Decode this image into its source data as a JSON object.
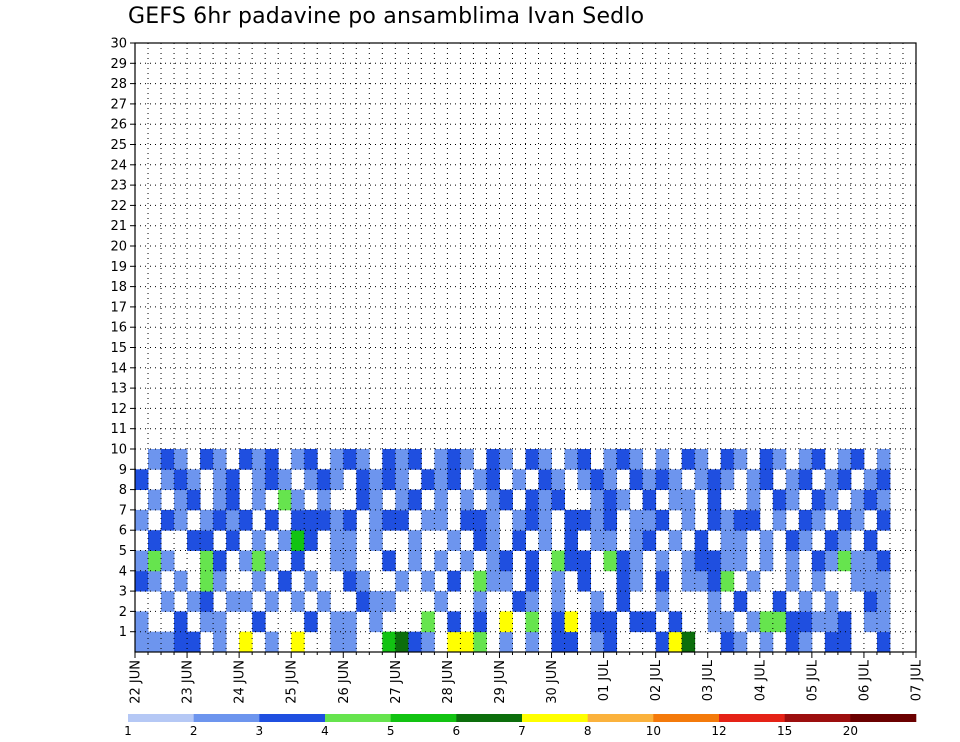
{
  "chart_data": {
    "type": "heatmap",
    "title": "GEFS 6hr padavine po ansamblima Ivan Sedlo",
    "x_ticks": [
      "22 JUN",
      "23 JUN",
      "24 JUN",
      "25 JUN",
      "26 JUN",
      "27 JUN",
      "28 JUN",
      "29 JUN",
      "30 JUN",
      "01 JUL",
      "02 JUL",
      "03 JUL",
      "04 JUL",
      "05 JUL",
      "06 JUL",
      "07 JUL"
    ],
    "y_ticks": [
      "1",
      "2",
      "3",
      "4",
      "5",
      "6",
      "7",
      "8",
      "9",
      "10",
      "11",
      "12",
      "13",
      "14",
      "15",
      "16",
      "17",
      "18",
      "19",
      "20",
      "21",
      "22",
      "23",
      "24",
      "25",
      "26",
      "27",
      "28",
      "29",
      "30"
    ],
    "xlim_days": [
      0,
      15
    ],
    "ylim": [
      0,
      30
    ],
    "steps_per_day": 4,
    "grid": true,
    "colorbar": {
      "levels": [
        "1",
        "2",
        "3",
        "4",
        "5",
        "6",
        "7",
        "8",
        "10",
        "12",
        "15",
        "20"
      ],
      "colors": [
        "#b5c8f5",
        "#6d95ee",
        "#1f4fe0",
        "#66e44e",
        "#12c312",
        "#0c6e0c",
        "#ffff00",
        "#fbb23c",
        "#f47a0b",
        "#e52216",
        "#9c0e0e",
        "#6b0000"
      ]
    },
    "cells": [
      [
        0,
        0,
        1
      ],
      [
        1,
        0,
        1
      ],
      [
        2,
        0,
        1
      ],
      [
        3,
        0,
        2
      ],
      [
        4,
        0,
        2
      ],
      [
        6,
        0,
        1
      ],
      [
        8,
        0,
        6
      ],
      [
        10,
        0,
        1
      ],
      [
        12,
        0,
        6
      ],
      [
        15,
        0,
        1
      ],
      [
        16,
        0,
        1
      ],
      [
        19,
        0,
        4
      ],
      [
        20,
        0,
        5
      ],
      [
        21,
        0,
        2
      ],
      [
        22,
        0,
        1
      ],
      [
        24,
        0,
        6
      ],
      [
        25,
        0,
        6
      ],
      [
        26,
        0,
        3
      ],
      [
        28,
        0,
        1
      ],
      [
        30,
        0,
        1
      ],
      [
        32,
        0,
        2
      ],
      [
        33,
        0,
        2
      ],
      [
        35,
        0,
        1
      ],
      [
        36,
        0,
        2
      ],
      [
        40,
        0,
        2
      ],
      [
        41,
        0,
        6
      ],
      [
        42,
        0,
        5
      ],
      [
        45,
        0,
        2
      ],
      [
        46,
        0,
        1
      ],
      [
        48,
        0,
        1
      ],
      [
        50,
        0,
        2
      ],
      [
        51,
        0,
        1
      ],
      [
        53,
        0,
        2
      ],
      [
        54,
        0,
        2
      ],
      [
        57,
        0,
        2
      ],
      [
        0,
        1,
        1
      ],
      [
        3,
        1,
        2
      ],
      [
        5,
        1,
        1
      ],
      [
        6,
        1,
        1
      ],
      [
        9,
        1,
        2
      ],
      [
        13,
        1,
        2
      ],
      [
        15,
        1,
        1
      ],
      [
        16,
        1,
        1
      ],
      [
        18,
        1,
        1
      ],
      [
        22,
        1,
        3
      ],
      [
        24,
        1,
        2
      ],
      [
        26,
        1,
        2
      ],
      [
        28,
        1,
        6
      ],
      [
        30,
        1,
        3
      ],
      [
        32,
        1,
        2
      ],
      [
        33,
        1,
        6
      ],
      [
        35,
        1,
        2
      ],
      [
        36,
        1,
        2
      ],
      [
        38,
        1,
        2
      ],
      [
        39,
        1,
        2
      ],
      [
        41,
        1,
        2
      ],
      [
        44,
        1,
        1
      ],
      [
        45,
        1,
        1
      ],
      [
        47,
        1,
        1
      ],
      [
        48,
        1,
        3
      ],
      [
        49,
        1,
        3
      ],
      [
        50,
        1,
        2
      ],
      [
        51,
        1,
        2
      ],
      [
        52,
        1,
        1
      ],
      [
        53,
        1,
        1
      ],
      [
        54,
        1,
        2
      ],
      [
        56,
        1,
        1
      ],
      [
        57,
        1,
        1
      ],
      [
        2,
        2,
        1
      ],
      [
        4,
        2,
        1
      ],
      [
        5,
        2,
        2
      ],
      [
        7,
        2,
        1
      ],
      [
        8,
        2,
        1
      ],
      [
        10,
        2,
        1
      ],
      [
        12,
        2,
        1
      ],
      [
        14,
        2,
        1
      ],
      [
        17,
        2,
        2
      ],
      [
        18,
        2,
        1
      ],
      [
        19,
        2,
        1
      ],
      [
        23,
        2,
        1
      ],
      [
        26,
        2,
        1
      ],
      [
        29,
        2,
        2
      ],
      [
        30,
        2,
        1
      ],
      [
        32,
        2,
        1
      ],
      [
        35,
        2,
        1
      ],
      [
        37,
        2,
        2
      ],
      [
        40,
        2,
        1
      ],
      [
        44,
        2,
        1
      ],
      [
        46,
        2,
        2
      ],
      [
        49,
        2,
        2
      ],
      [
        51,
        2,
        1
      ],
      [
        53,
        2,
        1
      ],
      [
        56,
        2,
        2
      ],
      [
        57,
        2,
        1
      ],
      [
        0,
        3,
        2
      ],
      [
        1,
        3,
        1
      ],
      [
        3,
        3,
        1
      ],
      [
        5,
        3,
        3
      ],
      [
        6,
        3,
        1
      ],
      [
        9,
        3,
        1
      ],
      [
        11,
        3,
        2
      ],
      [
        13,
        3,
        1
      ],
      [
        16,
        3,
        2
      ],
      [
        17,
        3,
        1
      ],
      [
        20,
        3,
        1
      ],
      [
        22,
        3,
        1
      ],
      [
        24,
        3,
        2
      ],
      [
        26,
        3,
        3
      ],
      [
        27,
        3,
        1
      ],
      [
        28,
        3,
        1
      ],
      [
        30,
        3,
        2
      ],
      [
        32,
        3,
        1
      ],
      [
        34,
        3,
        2
      ],
      [
        37,
        3,
        2
      ],
      [
        38,
        3,
        1
      ],
      [
        40,
        3,
        2
      ],
      [
        42,
        3,
        1
      ],
      [
        43,
        3,
        1
      ],
      [
        44,
        3,
        2
      ],
      [
        45,
        3,
        3
      ],
      [
        47,
        3,
        1
      ],
      [
        50,
        3,
        1
      ],
      [
        52,
        3,
        1
      ],
      [
        55,
        3,
        1
      ],
      [
        56,
        3,
        1
      ],
      [
        57,
        3,
        1
      ],
      [
        0,
        4,
        1
      ],
      [
        1,
        4,
        3
      ],
      [
        2,
        4,
        1
      ],
      [
        5,
        4,
        3
      ],
      [
        6,
        4,
        2
      ],
      [
        8,
        4,
        1
      ],
      [
        9,
        4,
        3
      ],
      [
        10,
        4,
        1
      ],
      [
        12,
        4,
        2
      ],
      [
        15,
        4,
        1
      ],
      [
        16,
        4,
        1
      ],
      [
        19,
        4,
        2
      ],
      [
        21,
        4,
        1
      ],
      [
        23,
        4,
        1
      ],
      [
        25,
        4,
        1
      ],
      [
        27,
        4,
        1
      ],
      [
        28,
        4,
        2
      ],
      [
        30,
        4,
        2
      ],
      [
        32,
        4,
        3
      ],
      [
        33,
        4,
        2
      ],
      [
        34,
        4,
        2
      ],
      [
        36,
        4,
        3
      ],
      [
        37,
        4,
        2
      ],
      [
        38,
        4,
        1
      ],
      [
        40,
        4,
        1
      ],
      [
        42,
        4,
        1
      ],
      [
        43,
        4,
        2
      ],
      [
        44,
        4,
        2
      ],
      [
        45,
        4,
        1
      ],
      [
        46,
        4,
        1
      ],
      [
        48,
        4,
        1
      ],
      [
        50,
        4,
        1
      ],
      [
        52,
        4,
        2
      ],
      [
        53,
        4,
        1
      ],
      [
        54,
        4,
        3
      ],
      [
        55,
        4,
        1
      ],
      [
        56,
        4,
        1
      ],
      [
        57,
        4,
        2
      ],
      [
        1,
        5,
        2
      ],
      [
        4,
        5,
        2
      ],
      [
        5,
        5,
        2
      ],
      [
        7,
        5,
        2
      ],
      [
        9,
        5,
        1
      ],
      [
        11,
        5,
        1
      ],
      [
        12,
        5,
        4
      ],
      [
        13,
        5,
        2
      ],
      [
        15,
        5,
        1
      ],
      [
        16,
        5,
        1
      ],
      [
        18,
        5,
        1
      ],
      [
        21,
        5,
        1
      ],
      [
        24,
        5,
        1
      ],
      [
        26,
        5,
        2
      ],
      [
        27,
        5,
        1
      ],
      [
        29,
        5,
        2
      ],
      [
        31,
        5,
        1
      ],
      [
        33,
        5,
        2
      ],
      [
        35,
        5,
        1
      ],
      [
        36,
        5,
        1
      ],
      [
        38,
        5,
        1
      ],
      [
        39,
        5,
        2
      ],
      [
        41,
        5,
        1
      ],
      [
        43,
        5,
        2
      ],
      [
        45,
        5,
        1
      ],
      [
        46,
        5,
        1
      ],
      [
        48,
        5,
        1
      ],
      [
        50,
        5,
        2
      ],
      [
        51,
        5,
        1
      ],
      [
        53,
        5,
        2
      ],
      [
        54,
        5,
        1
      ],
      [
        56,
        5,
        2
      ],
      [
        0,
        6,
        1
      ],
      [
        2,
        6,
        2
      ],
      [
        3,
        6,
        1
      ],
      [
        5,
        6,
        1
      ],
      [
        6,
        6,
        2
      ],
      [
        7,
        6,
        1
      ],
      [
        8,
        6,
        2
      ],
      [
        10,
        6,
        2
      ],
      [
        12,
        6,
        2
      ],
      [
        13,
        6,
        2
      ],
      [
        14,
        6,
        2
      ],
      [
        15,
        6,
        1
      ],
      [
        16,
        6,
        2
      ],
      [
        18,
        6,
        1
      ],
      [
        19,
        6,
        2
      ],
      [
        20,
        6,
        2
      ],
      [
        22,
        6,
        1
      ],
      [
        23,
        6,
        1
      ],
      [
        25,
        6,
        2
      ],
      [
        26,
        6,
        2
      ],
      [
        27,
        6,
        1
      ],
      [
        29,
        6,
        1
      ],
      [
        30,
        6,
        2
      ],
      [
        31,
        6,
        1
      ],
      [
        33,
        6,
        2
      ],
      [
        34,
        6,
        2
      ],
      [
        35,
        6,
        1
      ],
      [
        36,
        6,
        2
      ],
      [
        38,
        6,
        1
      ],
      [
        39,
        6,
        1
      ],
      [
        40,
        6,
        2
      ],
      [
        42,
        6,
        1
      ],
      [
        44,
        6,
        2
      ],
      [
        45,
        6,
        1
      ],
      [
        46,
        6,
        2
      ],
      [
        47,
        6,
        2
      ],
      [
        49,
        6,
        1
      ],
      [
        51,
        6,
        2
      ],
      [
        52,
        6,
        1
      ],
      [
        54,
        6,
        2
      ],
      [
        55,
        6,
        1
      ],
      [
        57,
        6,
        2
      ],
      [
        1,
        7,
        1
      ],
      [
        3,
        7,
        1
      ],
      [
        4,
        7,
        2
      ],
      [
        6,
        7,
        1
      ],
      [
        7,
        7,
        2
      ],
      [
        9,
        7,
        1
      ],
      [
        11,
        7,
        3
      ],
      [
        12,
        7,
        1
      ],
      [
        14,
        7,
        1
      ],
      [
        17,
        7,
        2
      ],
      [
        18,
        7,
        1
      ],
      [
        20,
        7,
        1
      ],
      [
        21,
        7,
        2
      ],
      [
        23,
        7,
        1
      ],
      [
        25,
        7,
        1
      ],
      [
        27,
        7,
        1
      ],
      [
        28,
        7,
        2
      ],
      [
        30,
        7,
        2
      ],
      [
        31,
        7,
        1
      ],
      [
        32,
        7,
        2
      ],
      [
        35,
        7,
        1
      ],
      [
        36,
        7,
        2
      ],
      [
        37,
        7,
        1
      ],
      [
        39,
        7,
        2
      ],
      [
        41,
        7,
        1
      ],
      [
        42,
        7,
        1
      ],
      [
        44,
        7,
        2
      ],
      [
        47,
        7,
        1
      ],
      [
        49,
        7,
        2
      ],
      [
        50,
        7,
        1
      ],
      [
        52,
        7,
        2
      ],
      [
        53,
        7,
        1
      ],
      [
        55,
        7,
        1
      ],
      [
        56,
        7,
        2
      ],
      [
        57,
        7,
        1
      ],
      [
        0,
        8,
        2
      ],
      [
        2,
        8,
        1
      ],
      [
        3,
        8,
        2
      ],
      [
        4,
        8,
        1
      ],
      [
        6,
        8,
        1
      ],
      [
        7,
        8,
        2
      ],
      [
        9,
        8,
        1
      ],
      [
        10,
        8,
        2
      ],
      [
        11,
        8,
        1
      ],
      [
        13,
        8,
        1
      ],
      [
        14,
        8,
        2
      ],
      [
        15,
        8,
        1
      ],
      [
        17,
        8,
        2
      ],
      [
        18,
        8,
        1
      ],
      [
        19,
        8,
        2
      ],
      [
        20,
        8,
        1
      ],
      [
        22,
        8,
        2
      ],
      [
        23,
        8,
        1
      ],
      [
        24,
        8,
        2
      ],
      [
        26,
        8,
        1
      ],
      [
        27,
        8,
        2
      ],
      [
        29,
        8,
        1
      ],
      [
        31,
        8,
        2
      ],
      [
        32,
        8,
        1
      ],
      [
        34,
        8,
        1
      ],
      [
        35,
        8,
        2
      ],
      [
        36,
        8,
        1
      ],
      [
        38,
        8,
        2
      ],
      [
        39,
        8,
        1
      ],
      [
        40,
        8,
        2
      ],
      [
        41,
        8,
        1
      ],
      [
        43,
        8,
        1
      ],
      [
        44,
        8,
        2
      ],
      [
        45,
        8,
        1
      ],
      [
        47,
        8,
        1
      ],
      [
        48,
        8,
        2
      ],
      [
        50,
        8,
        1
      ],
      [
        51,
        8,
        2
      ],
      [
        53,
        8,
        1
      ],
      [
        54,
        8,
        2
      ],
      [
        56,
        8,
        1
      ],
      [
        57,
        8,
        2
      ],
      [
        1,
        9,
        1
      ],
      [
        2,
        9,
        2
      ],
      [
        3,
        9,
        1
      ],
      [
        5,
        9,
        2
      ],
      [
        6,
        9,
        1
      ],
      [
        8,
        9,
        2
      ],
      [
        9,
        9,
        1
      ],
      [
        10,
        9,
        2
      ],
      [
        12,
        9,
        1
      ],
      [
        13,
        9,
        2
      ],
      [
        15,
        9,
        1
      ],
      [
        16,
        9,
        2
      ],
      [
        17,
        9,
        1
      ],
      [
        19,
        9,
        2
      ],
      [
        20,
        9,
        1
      ],
      [
        21,
        9,
        2
      ],
      [
        23,
        9,
        1
      ],
      [
        24,
        9,
        2
      ],
      [
        25,
        9,
        1
      ],
      [
        27,
        9,
        2
      ],
      [
        28,
        9,
        1
      ],
      [
        30,
        9,
        2
      ],
      [
        31,
        9,
        1
      ],
      [
        33,
        9,
        1
      ],
      [
        34,
        9,
        2
      ],
      [
        36,
        9,
        1
      ],
      [
        37,
        9,
        2
      ],
      [
        38,
        9,
        1
      ],
      [
        40,
        9,
        1
      ],
      [
        42,
        9,
        2
      ],
      [
        43,
        9,
        1
      ],
      [
        45,
        9,
        2
      ],
      [
        46,
        9,
        1
      ],
      [
        48,
        9,
        2
      ],
      [
        49,
        9,
        1
      ],
      [
        51,
        9,
        1
      ],
      [
        52,
        9,
        2
      ],
      [
        54,
        9,
        1
      ],
      [
        55,
        9,
        2
      ],
      [
        57,
        9,
        1
      ]
    ]
  }
}
